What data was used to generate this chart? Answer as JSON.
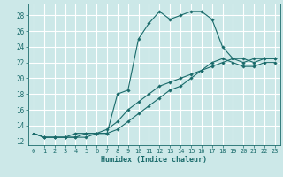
{
  "xlabel": "Humidex (Indice chaleur)",
  "bg_color": "#cce8e8",
  "grid_color": "#ffffff",
  "line_color": "#1a6b6b",
  "xlim": [
    -0.5,
    23.5
  ],
  "ylim": [
    11.5,
    29.5
  ],
  "xticks": [
    0,
    1,
    2,
    3,
    4,
    5,
    6,
    7,
    8,
    9,
    10,
    11,
    12,
    13,
    14,
    15,
    16,
    17,
    18,
    19,
    20,
    21,
    22,
    23
  ],
  "yticks": [
    12,
    14,
    16,
    18,
    20,
    22,
    24,
    26,
    28
  ],
  "line1_x": [
    0,
    1,
    2,
    3,
    4,
    5,
    6,
    7,
    8,
    9,
    10,
    11,
    12,
    13,
    14,
    15,
    16,
    17,
    18,
    19,
    20,
    21,
    22,
    23
  ],
  "line1_y": [
    13,
    12.5,
    12.5,
    12.5,
    12.5,
    13,
    13,
    13,
    18,
    18.5,
    25,
    27,
    28.5,
    27.5,
    28,
    28.5,
    28.5,
    27.5,
    24,
    22.5,
    22,
    22.5,
    22.5,
    22.5
  ],
  "line2_x": [
    0,
    1,
    2,
    3,
    4,
    5,
    6,
    7,
    8,
    9,
    10,
    11,
    12,
    13,
    14,
    15,
    16,
    17,
    18,
    19,
    20,
    21,
    22,
    23
  ],
  "line2_y": [
    13,
    12.5,
    12.5,
    12.5,
    13,
    13,
    13,
    13.5,
    14.5,
    16,
    17,
    18,
    19,
    19.5,
    20,
    20.5,
    21,
    21.5,
    22,
    22.5,
    22.5,
    22,
    22.5,
    22.5
  ],
  "line3_x": [
    0,
    1,
    2,
    3,
    4,
    5,
    6,
    7,
    8,
    9,
    10,
    11,
    12,
    13,
    14,
    15,
    16,
    17,
    18,
    19,
    20,
    21,
    22,
    23
  ],
  "line3_y": [
    13,
    12.5,
    12.5,
    12.5,
    12.5,
    12.5,
    13,
    13,
    13.5,
    14.5,
    15.5,
    16.5,
    17.5,
    18.5,
    19,
    20,
    21,
    22,
    22.5,
    22,
    21.5,
    21.5,
    22,
    22
  ]
}
